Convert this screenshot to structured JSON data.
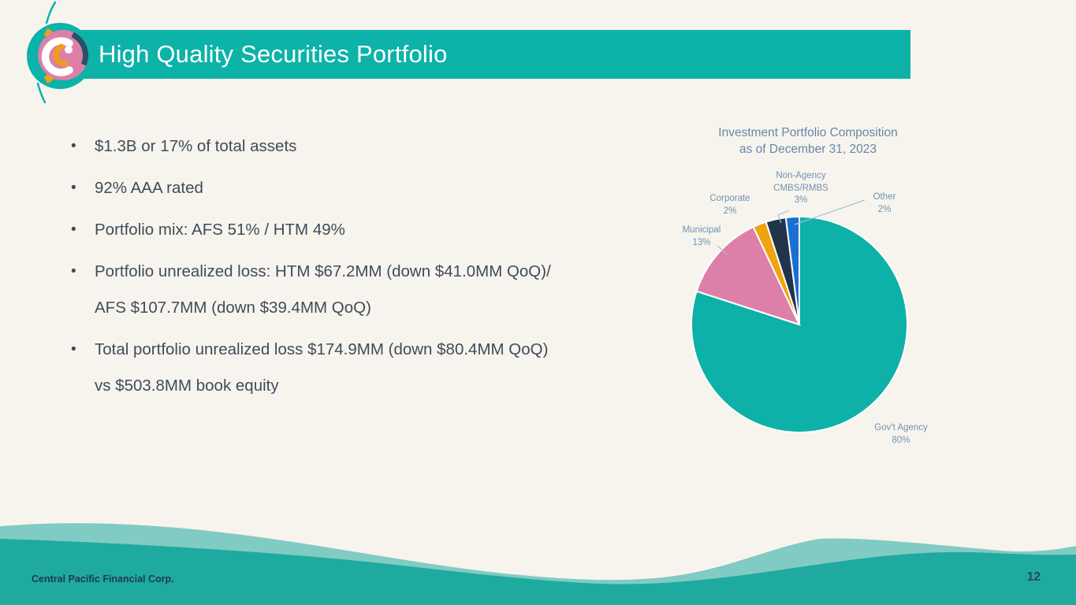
{
  "header": {
    "title": "High Quality Securities Portfolio"
  },
  "bullets": [
    {
      "lines": [
        "$1.3B or 17% of total assets"
      ]
    },
    {
      "lines": [
        "92% AAA rated"
      ]
    },
    {
      "lines": [
        "Portfolio mix: AFS 51% / HTM 49%"
      ]
    },
    {
      "lines": [
        "Portfolio unrealized loss: HTM $67.2MM (down $41.0MM QoQ)/",
        "AFS $107.7MM (down $39.4MM QoQ)"
      ]
    },
    {
      "lines": [
        "Total portfolio unrealized loss $174.9MM (down $80.4MM QoQ)",
        "vs $503.8MM book equity"
      ]
    }
  ],
  "chart_data": {
    "type": "pie",
    "title": "Investment Portfolio Composition as of December 31, 2023",
    "title_lines": [
      "Investment Portfolio Composition",
      "as of December 31, 2023"
    ],
    "start_angle_deg": 0,
    "direction": "clockwise",
    "legend_position": "outside-labels",
    "slices": [
      {
        "label": "Gov't Agency",
        "pct_label": "80%",
        "value": 80,
        "color": "#0db1a7"
      },
      {
        "label": "Municipal",
        "pct_label": "13%",
        "value": 13,
        "color": "#dc80a9"
      },
      {
        "label": "Corporate",
        "pct_label": "2%",
        "value": 2,
        "color": "#efa30e"
      },
      {
        "label": "Non-Agency CMBS/RMBS",
        "pct_label": "3%",
        "value": 3,
        "color": "#22344a"
      },
      {
        "label": "Other",
        "pct_label": "2%",
        "value": 2,
        "color": "#1b6fd3"
      }
    ]
  },
  "footer": {
    "company": "Central Pacific Financial Corp.",
    "page_number": "12"
  },
  "colors": {
    "background": "#f7f4ee",
    "header_bar": "#0db2a8",
    "title_text": "#ffffff",
    "bullet_text": "#3f4c57",
    "chart_title": "#6787aa",
    "chart_label": "#7191af",
    "leader_line": "#a9bfd1",
    "wave_dark": "#1faa9f",
    "wave_light": "#80cbc3",
    "footer_text": "#1d3a4a",
    "page_number": "#2c4659"
  }
}
